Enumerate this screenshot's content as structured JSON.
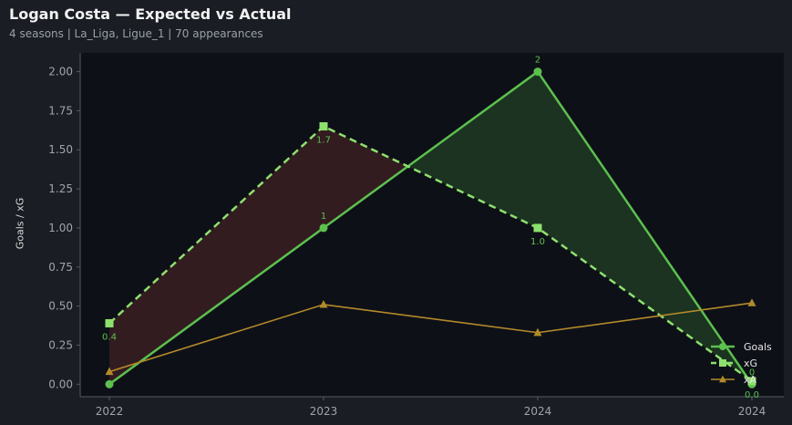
{
  "header": {
    "title": "Logan Costa — Expected vs Actual",
    "subtitle": "4 seasons | La_Liga, Ligue_1 | 70 appearances"
  },
  "colors": {
    "goals": "#5cc04e",
    "xg": "#8ee06e",
    "xa": "#b38a2a",
    "overperf_fill": "#1e3a22",
    "underperf_fill": "#3a1e22",
    "plot_bg": "#0d1017",
    "axis": "#555a63",
    "tick_text": "#a0a4ab"
  },
  "chart_data": {
    "type": "line",
    "title": "Logan Costa — Expected vs Actual",
    "xlabel": "",
    "ylabel": "Goals / xG",
    "categories": [
      "2022",
      "2023",
      "2024",
      "2024"
    ],
    "x": [
      0,
      1,
      2,
      3
    ],
    "ylim": [
      -0.08,
      2.12
    ],
    "yticks": [
      0.0,
      0.25,
      0.5,
      0.75,
      1.0,
      1.25,
      1.5,
      1.75,
      2.0
    ],
    "ytick_labels": [
      "0.00",
      "0.25",
      "0.50",
      "0.75",
      "1.00",
      "1.25",
      "1.50",
      "1.75",
      "2.00"
    ],
    "grid": false,
    "legend_position": "bottom-right",
    "series": [
      {
        "name": "Goals",
        "values": [
          0,
          1,
          2,
          0
        ],
        "marker": "circle",
        "style": "solid",
        "labels": [
          "",
          "1",
          "2",
          "0"
        ]
      },
      {
        "name": "xG",
        "values": [
          0.39,
          1.65,
          1.0,
          0.02
        ],
        "marker": "square",
        "style": "dashed",
        "labels": [
          "0.4",
          "1.7",
          "1.0",
          "0.0"
        ]
      },
      {
        "name": "xA",
        "values": [
          0.08,
          0.51,
          0.33,
          0.52
        ],
        "marker": "triangle",
        "style": "solid",
        "labels": [
          "",
          "",
          "",
          ""
        ]
      }
    ]
  }
}
